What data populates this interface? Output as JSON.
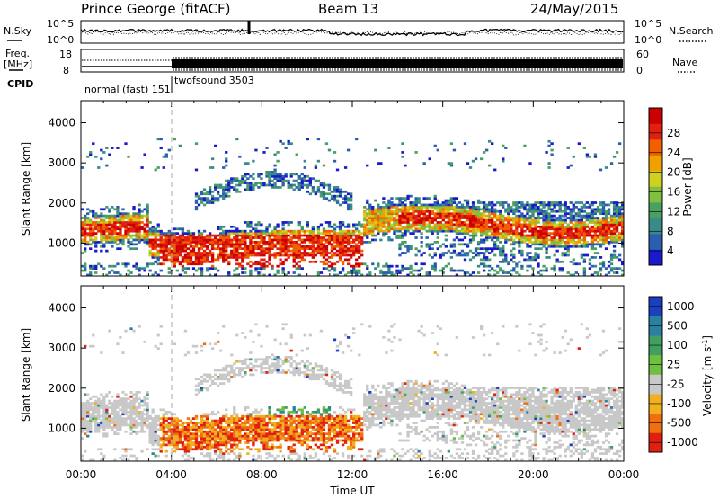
{
  "header": {
    "station": "Prince George (fitACF)",
    "beam": "Beam 13",
    "date": "24/May/2015"
  },
  "strip1": {
    "left_label": "N.Sky",
    "right_label": "N.Search",
    "left_ticks": [
      "10^5",
      "10^0"
    ],
    "right_ticks": [
      "10^5",
      "10^0"
    ]
  },
  "strip2": {
    "left_label_1": "Freq.",
    "left_label_2": "[MHz]",
    "right_label": "Nave",
    "left_ticks": [
      "18",
      "8"
    ],
    "right_ticks": [
      "60",
      "0"
    ]
  },
  "cpid": {
    "label": "CPID",
    "mode_1": "normal (fast) 151",
    "mode_2": "twofsound 3503",
    "switch_hour": 4.0
  },
  "chart_data": [
    {
      "type": "heatmap",
      "name": "power",
      "title": "",
      "xlabel": "",
      "ylabel": "Slant Range [km]",
      "ylim": [
        180,
        4550
      ],
      "y_ticks": [
        1000,
        2000,
        3000,
        4000
      ],
      "xlim": [
        0,
        24
      ],
      "colorbar_label": "Power [dB]",
      "colorbar_ticks": [
        "4",
        "8",
        "12",
        "16",
        "20",
        "24",
        "28"
      ],
      "colorbar_range": [
        0,
        30
      ],
      "colors": [
        "#1a1acc",
        "#2a5fb0",
        "#3a8a8a",
        "#4aa060",
        "#80c040",
        "#d0d020",
        "#f0a000",
        "#f06000",
        "#e02010",
        "#cc0000"
      ]
    },
    {
      "type": "heatmap",
      "name": "velocity",
      "title": "",
      "xlabel": "Time UT",
      "ylabel": "Slant Range [km]",
      "ylim": [
        180,
        4550
      ],
      "y_ticks": [
        1000,
        2000,
        3000,
        4000
      ],
      "xlim": [
        0,
        24
      ],
      "x_ticks": [
        "00:00",
        "04:00",
        "08:00",
        "12:00",
        "16:00",
        "20:00",
        "00:00"
      ],
      "colorbar_label": "Velocity [m s",
      "colorbar_label_sup": "-1",
      "colorbar_label_end": "]",
      "colorbar_ticks": [
        "1000",
        "500",
        "100",
        "25",
        "-25",
        "-100",
        "-500",
        "-1000"
      ],
      "colors": [
        "#1a40c0",
        "#2a80a0",
        "#40a060",
        "#70c040",
        "#c8c8c8",
        "#f0b020",
        "#f07010",
        "#e02010"
      ]
    }
  ]
}
